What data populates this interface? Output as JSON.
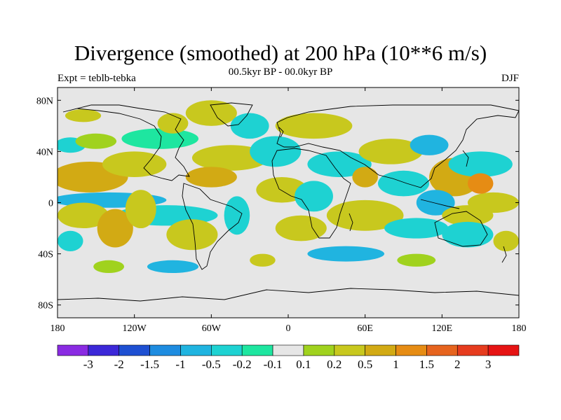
{
  "title": "Divergence (smoothed) at 200 hPa (10**6 m/s)",
  "subtitle": "00.5kyr BP - 00.0kyr BP",
  "left_label": "Expt = teblb-tebka",
  "right_label": "DJF",
  "chart_data": {
    "type": "contour_map",
    "projection": "cylindrical equidistant",
    "variable": "Divergence (smoothed) at 200 hPa",
    "units": "10**6 m/s",
    "season": "DJF",
    "lon_range": [
      -180,
      180
    ],
    "lat_range": [
      -90,
      90
    ],
    "x_ticks": [
      {
        "value": -180,
        "label": "180"
      },
      {
        "value": -120,
        "label": "120W"
      },
      {
        "value": -60,
        "label": "60W"
      },
      {
        "value": 0,
        "label": "0"
      },
      {
        "value": 60,
        "label": "60E"
      },
      {
        "value": 120,
        "label": "120E"
      },
      {
        "value": 180,
        "label": "180"
      }
    ],
    "y_ticks": [
      {
        "value": 80,
        "label": "80N"
      },
      {
        "value": 40,
        "label": "40N"
      },
      {
        "value": 0,
        "label": "0"
      },
      {
        "value": -40,
        "label": "40S"
      },
      {
        "value": -80,
        "label": "80S"
      }
    ],
    "colorbar": {
      "colors": [
        "#8a2be2",
        "#3c28d8",
        "#1e50d2",
        "#1e8ce0",
        "#20b4e0",
        "#1ed2d2",
        "#1ee6a0",
        "#e6e6e6",
        "#a0d21e",
        "#c8c81e",
        "#d2aa14",
        "#e68c14",
        "#e6641e",
        "#e63c1e",
        "#e61414"
      ],
      "labels": [
        "-3",
        "-2",
        "-1.5",
        "-1",
        "-0.5",
        "-0.2",
        "-0.1",
        "0.1",
        "0.2",
        "0.5",
        "1",
        "1.5",
        "2",
        "3"
      ]
    },
    "patches": [
      {
        "lon": -155,
        "lat": 20,
        "rx": 30,
        "ry": 12,
        "level": 10
      },
      {
        "lon": -120,
        "lat": 30,
        "rx": 25,
        "ry": 10,
        "level": 9
      },
      {
        "lon": -170,
        "lat": 45,
        "rx": 12,
        "ry": 6,
        "level": 5
      },
      {
        "lon": -150,
        "lat": 48,
        "rx": 16,
        "ry": 6,
        "level": 8
      },
      {
        "lon": -100,
        "lat": 50,
        "rx": 30,
        "ry": 8,
        "level": 6
      },
      {
        "lon": -90,
        "lat": 62,
        "rx": 12,
        "ry": 8,
        "level": 9
      },
      {
        "lon": -160,
        "lat": 68,
        "rx": 14,
        "ry": 5,
        "level": 9
      },
      {
        "lon": -60,
        "lat": 70,
        "rx": 20,
        "ry": 10,
        "level": 9
      },
      {
        "lon": -140,
        "lat": 2,
        "rx": 45,
        "ry": 6,
        "level": 4
      },
      {
        "lon": -95,
        "lat": -10,
        "rx": 40,
        "ry": 8,
        "level": 5
      },
      {
        "lon": -160,
        "lat": -10,
        "rx": 20,
        "ry": 10,
        "level": 9
      },
      {
        "lon": -135,
        "lat": -20,
        "rx": 14,
        "ry": 15,
        "level": 10
      },
      {
        "lon": -115,
        "lat": -5,
        "rx": 12,
        "ry": 15,
        "level": 9
      },
      {
        "lon": -75,
        "lat": -25,
        "rx": 20,
        "ry": 12,
        "level": 9
      },
      {
        "lon": -40,
        "lat": -10,
        "rx": 10,
        "ry": 15,
        "level": 5
      },
      {
        "lon": -45,
        "lat": 35,
        "rx": 30,
        "ry": 10,
        "level": 9
      },
      {
        "lon": -60,
        "lat": 20,
        "rx": 20,
        "ry": 8,
        "level": 10
      },
      {
        "lon": -10,
        "lat": 40,
        "rx": 20,
        "ry": 12,
        "level": 5
      },
      {
        "lon": -5,
        "lat": 10,
        "rx": 20,
        "ry": 10,
        "level": 9
      },
      {
        "lon": 10,
        "lat": -20,
        "rx": 20,
        "ry": 10,
        "level": 9
      },
      {
        "lon": 20,
        "lat": 5,
        "rx": 15,
        "ry": 12,
        "level": 5
      },
      {
        "lon": 40,
        "lat": 30,
        "rx": 25,
        "ry": 10,
        "level": 5
      },
      {
        "lon": 60,
        "lat": -10,
        "rx": 30,
        "ry": 12,
        "level": 9
      },
      {
        "lon": 45,
        "lat": -40,
        "rx": 30,
        "ry": 6,
        "level": 4
      },
      {
        "lon": 20,
        "lat": 60,
        "rx": 30,
        "ry": 10,
        "level": 9
      },
      {
        "lon": 80,
        "lat": 40,
        "rx": 25,
        "ry": 10,
        "level": 9
      },
      {
        "lon": 90,
        "lat": 15,
        "rx": 20,
        "ry": 10,
        "level": 5
      },
      {
        "lon": 110,
        "lat": 45,
        "rx": 15,
        "ry": 8,
        "level": 4
      },
      {
        "lon": 130,
        "lat": 20,
        "rx": 20,
        "ry": 15,
        "level": 10
      },
      {
        "lon": 115,
        "lat": 0,
        "rx": 15,
        "ry": 10,
        "level": 4
      },
      {
        "lon": 140,
        "lat": -10,
        "rx": 20,
        "ry": 8,
        "level": 9
      },
      {
        "lon": 150,
        "lat": 30,
        "rx": 25,
        "ry": 10,
        "level": 5
      },
      {
        "lon": 160,
        "lat": 0,
        "rx": 20,
        "ry": 8,
        "level": 9
      },
      {
        "lon": 140,
        "lat": -25,
        "rx": 20,
        "ry": 10,
        "level": 5
      },
      {
        "lon": 170,
        "lat": -30,
        "rx": 10,
        "ry": 8,
        "level": 9
      },
      {
        "lon": -30,
        "lat": 60,
        "rx": 15,
        "ry": 10,
        "level": 5
      },
      {
        "lon": 100,
        "lat": -20,
        "rx": 25,
        "ry": 8,
        "level": 5
      },
      {
        "lon": -170,
        "lat": -30,
        "rx": 10,
        "ry": 8,
        "level": 5
      },
      {
        "lon": 60,
        "lat": 20,
        "rx": 10,
        "ry": 8,
        "level": 10
      },
      {
        "lon": -140,
        "lat": -50,
        "rx": 12,
        "ry": 5,
        "level": 8
      },
      {
        "lon": -90,
        "lat": -50,
        "rx": 20,
        "ry": 5,
        "level": 4
      },
      {
        "lon": -20,
        "lat": -45,
        "rx": 10,
        "ry": 5,
        "level": 9
      },
      {
        "lon": 100,
        "lat": -45,
        "rx": 15,
        "ry": 5,
        "level": 8
      },
      {
        "lon": 150,
        "lat": 15,
        "rx": 10,
        "ry": 8,
        "level": 11
      }
    ]
  }
}
